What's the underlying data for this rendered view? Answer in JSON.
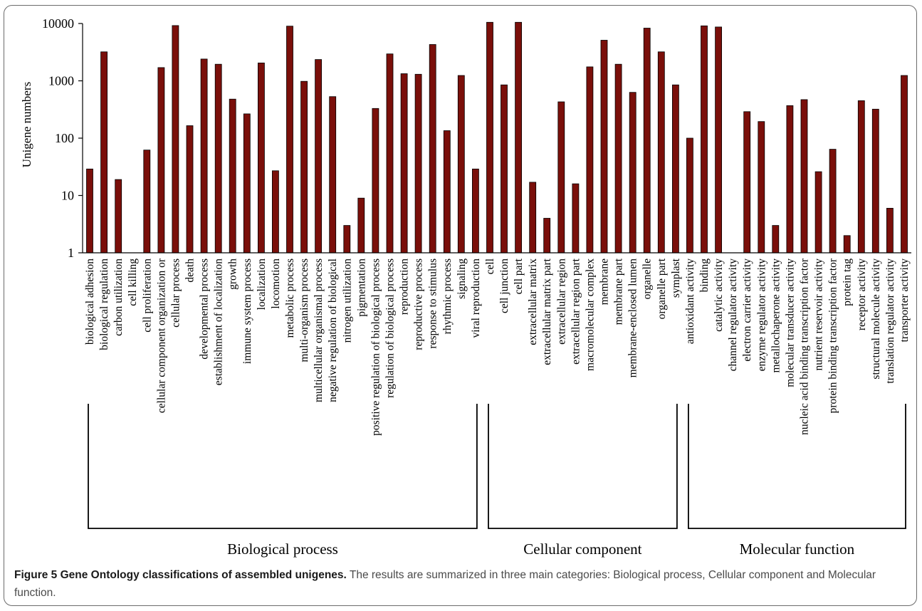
{
  "figure": {
    "caption_label": "Figure 5 Gene Ontology classifications of assembled unigenes.",
    "caption_text": " The results are summarized in three main categories: Biological process, Cellular component and Molecular function."
  },
  "colors": {
    "bar_fill": "#7a0f0a",
    "bar_stroke": "#000000",
    "axis": "#000000"
  },
  "chart_data": {
    "type": "bar",
    "ylabel": "Unigene numbers",
    "xlabel": "",
    "yscale": "log",
    "ylim": [
      1,
      10000
    ],
    "yticks": [
      "1",
      "10",
      "100",
      "1000",
      "10000"
    ],
    "grid": false,
    "groups": [
      {
        "name": "Biological process",
        "first": 0,
        "last": 27
      },
      {
        "name": "Cellular component",
        "first": 28,
        "last": 41
      },
      {
        "name": "Molecular function",
        "first": 42,
        "last": 57
      }
    ],
    "categories": [
      "biological adhesion",
      "biological regulation",
      "carbon utilization",
      "cell killing",
      "cell proliferation",
      "cellular component organization or",
      "cellular process",
      "death",
      "developmental process",
      "establishment of localization",
      "growth",
      "immune system process",
      "localization",
      "locomotion",
      "metabolic process",
      "multi-organism process",
      "multicellular organismal process",
      "negative regulation of biological",
      "nitrogen utilization",
      "pigmentation",
      "positive regulation of biological process",
      "regulation of biological process",
      "reproduction",
      "reproductive process",
      "response to stimulus",
      "rhythmic process",
      "signaling",
      "viral reproduction",
      "cell",
      "cell junction",
      "cell part",
      "extracellular matrix",
      "extracellular matrix part",
      "extracellular region",
      "extracellular region part",
      "macromolecular complex",
      "membrane",
      "membrane part",
      "membrane-enclosed lumen",
      "organelle",
      "organelle part",
      "symplast",
      "antioxidant activity",
      "binding",
      "catalytic activity",
      "channel regulator activity",
      "electron carrier activity",
      "enzyme regulator activity",
      "metallochaperone activity",
      "molecular transducer activity",
      "nucleic acid binding transcription factor",
      "nutrient reservoir activity",
      "protein binding transcription factor",
      "protein tag",
      "receptor activity",
      "structural molecule activity",
      "translation regulator activity",
      "transporter activity"
    ],
    "values": [
      29,
      3200,
      19,
      1,
      62,
      1700,
      9200,
      165,
      2400,
      1950,
      480,
      265,
      2050,
      27,
      9000,
      980,
      2350,
      530,
      3,
      9,
      330,
      2950,
      1330,
      1300,
      4300,
      135,
      1240,
      29,
      10500,
      850,
      10500,
      17,
      4,
      430,
      16,
      1750,
      5100,
      1950,
      630,
      8300,
      3200,
      850,
      100,
      9100,
      8700,
      1,
      290,
      195,
      3,
      370,
      470,
      26,
      64,
      2,
      450,
      320,
      6,
      1240
    ]
  }
}
